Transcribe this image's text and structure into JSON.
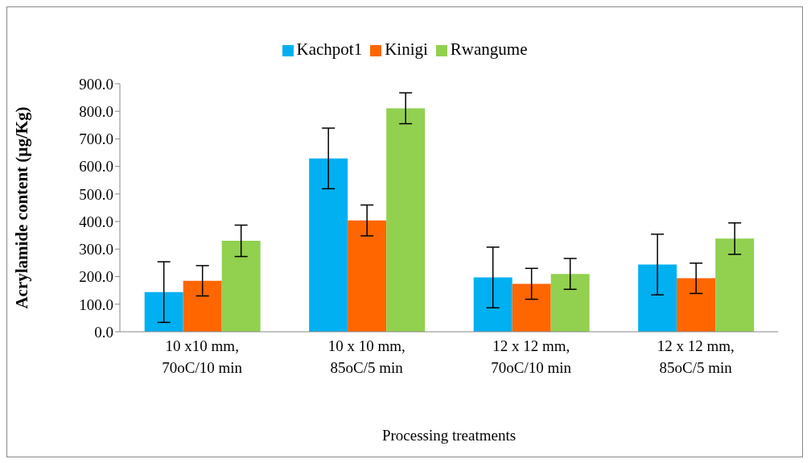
{
  "chart_data": {
    "type": "bar",
    "xlabel": "Processing treatments",
    "ylabel": "Acrylamide content (µg/Kg)",
    "categories": [
      "10 x10 mm, 70oC/10 min",
      "10 x 10 mm, 85oC/5 min",
      "12 x 12 mm, 70oC/10 min",
      "12 x 12 mm, 85oC/5 min"
    ],
    "series": [
      {
        "name": "Kachpot1",
        "color": "#00b0f0",
        "values": [
          144,
          629,
          197,
          244
        ],
        "errors": [
          110,
          110,
          110,
          110
        ]
      },
      {
        "name": "Kinigi",
        "color": "#ff6600",
        "values": [
          185,
          404,
          174,
          194
        ],
        "errors": [
          55,
          56,
          56,
          55
        ]
      },
      {
        "name": "Rwangume",
        "color": "#92d050",
        "values": [
          330,
          811,
          210,
          338
        ],
        "errors": [
          57,
          56,
          56,
          57
        ]
      }
    ],
    "ylim": [
      0,
      900
    ],
    "yticks": [
      {
        "value": 0,
        "label": "0.0"
      },
      {
        "value": 100,
        "label": "100.0"
      },
      {
        "value": 200,
        "label": "200.0"
      },
      {
        "value": 300,
        "label": "300.0"
      },
      {
        "value": 400,
        "label": "400.0"
      },
      {
        "value": 500,
        "label": "500.0"
      },
      {
        "value": 600,
        "label": "600.0"
      },
      {
        "value": 700,
        "label": "700.0"
      },
      {
        "value": 800,
        "label": "800.0"
      },
      {
        "value": 900,
        "label": "900.0"
      }
    ],
    "grid": false,
    "legend": "top"
  }
}
